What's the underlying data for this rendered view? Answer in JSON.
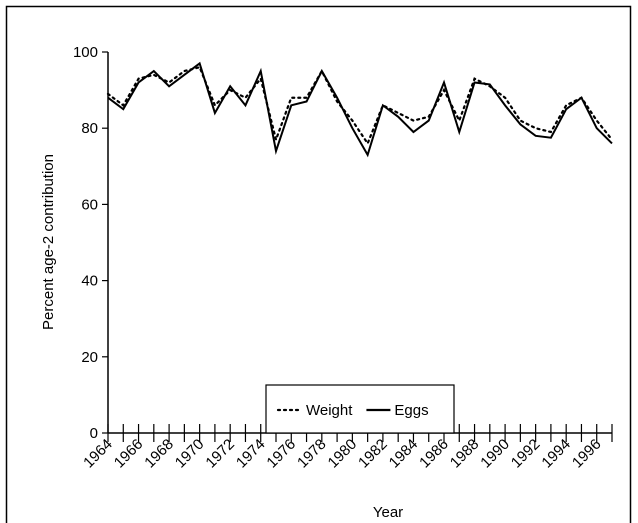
{
  "chart_data": {
    "type": "line",
    "x_label": "Year",
    "y_label": "Percent age-2 contribution",
    "x": [
      1964,
      1965,
      1966,
      1967,
      1968,
      1969,
      1970,
      1971,
      1972,
      1973,
      1974,
      1975,
      1976,
      1977,
      1978,
      1979,
      1980,
      1981,
      1982,
      1983,
      1984,
      1985,
      1986,
      1987,
      1988,
      1989,
      1990,
      1991,
      1992,
      1993,
      1994,
      1995,
      1996,
      1997
    ],
    "series": [
      {
        "name": "Weight",
        "color": "#000000",
        "dash": "dotted",
        "values": [
          89,
          86,
          93,
          94,
          92,
          95,
          96,
          86,
          90,
          88,
          93,
          77,
          88,
          88,
          95,
          87,
          82,
          76,
          86,
          84,
          82,
          83,
          90,
          82,
          93,
          91,
          88,
          82,
          80,
          79,
          86,
          88,
          82,
          77
        ]
      },
      {
        "name": "Eggs",
        "color": "#000000",
        "dash": "solid",
        "values": [
          88,
          85,
          92,
          95,
          91,
          94,
          97,
          84,
          91,
          86,
          95,
          74,
          86,
          87,
          95,
          88,
          80,
          73,
          86,
          83,
          79,
          82,
          92,
          79,
          92,
          91.5,
          86,
          81,
          78,
          77.5,
          85,
          88,
          80,
          76
        ]
      }
    ],
    "xlim": [
      1964,
      1997
    ],
    "xticks": [
      1964,
      1966,
      1968,
      1970,
      1972,
      1974,
      1976,
      1978,
      1980,
      1982,
      1984,
      1986,
      1988,
      1990,
      1992,
      1994,
      1996
    ],
    "xminorticks": [
      1965,
      1967,
      1969,
      1971,
      1973,
      1975,
      1977,
      1979,
      1981,
      1983,
      1985,
      1987,
      1989,
      1991,
      1993,
      1995,
      1997
    ],
    "ylim": [
      0,
      100
    ],
    "yticks": [
      0,
      20,
      40,
      60,
      80,
      100
    ],
    "legend": "bottom-center"
  }
}
